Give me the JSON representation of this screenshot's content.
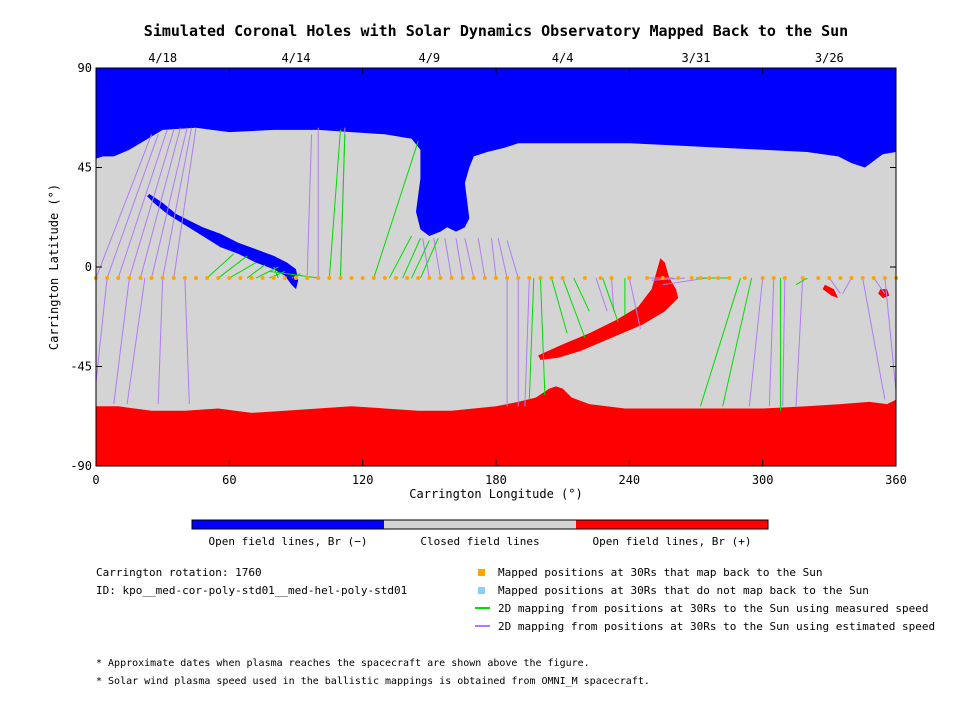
{
  "chart_data": {
    "type": "map",
    "title": "Simulated Coronal Holes with Solar Dynamics Observatory Mapped Back to the Sun",
    "xlabel": "Carrington Longitude (°)",
    "ylabel": "Carrington Latitude (°)",
    "xlim": [
      0,
      360
    ],
    "ylim": [
      -90,
      90
    ],
    "x_ticks": [
      "0",
      "60",
      "120",
      "180",
      "240",
      "300",
      "360"
    ],
    "y_ticks": [
      "90",
      "45",
      "0",
      "-45",
      "-90"
    ],
    "top_dates": [
      {
        "label": "4/18",
        "lon": 30
      },
      {
        "label": "4/14",
        "lon": 90
      },
      {
        "label": "4/9",
        "lon": 150
      },
      {
        "label": "4/4",
        "lon": 210
      },
      {
        "label": "3/31",
        "lon": 270
      },
      {
        "label": "3/26",
        "lon": 330
      }
    ],
    "colorbar": [
      {
        "label": "Open field lines, Br (−)",
        "color": "#0000ff"
      },
      {
        "label": "Closed field lines",
        "color": "#d4d4d4"
      },
      {
        "label": "Open field lines, Br (+)",
        "color": "#ff0000"
      }
    ],
    "mapped_latitude": -5,
    "mapped_points_lon": [
      0,
      5,
      10,
      15,
      20,
      25,
      30,
      35,
      40,
      45,
      50,
      55,
      60,
      65,
      70,
      75,
      80,
      85,
      90,
      95,
      100,
      105,
      110,
      115,
      120,
      125,
      130,
      135,
      140,
      145,
      150,
      155,
      160,
      165,
      170,
      175,
      180,
      185,
      190,
      195,
      200,
      205,
      210,
      220,
      227,
      232,
      240,
      248,
      255,
      262,
      268,
      272,
      276,
      280,
      285,
      292,
      300,
      305,
      310,
      318,
      325,
      330,
      335,
      340,
      345,
      350,
      355,
      360
    ],
    "field_lines_measured": [
      [
        50,
        -5,
        62,
        6
      ],
      [
        55,
        -5,
        68,
        5
      ],
      [
        60,
        -5,
        72,
        2
      ],
      [
        68,
        -5,
        76,
        1
      ],
      [
        72,
        -5,
        82,
        0
      ],
      [
        78,
        -5,
        85,
        -2
      ],
      [
        82,
        -5,
        80,
        0
      ],
      [
        88,
        -5,
        92,
        -3
      ],
      [
        100,
        -5,
        78,
        -2
      ],
      [
        105,
        -5,
        110,
        62
      ],
      [
        110,
        -5,
        112,
        60
      ],
      [
        125,
        -5,
        145,
        57
      ],
      [
        132,
        -5,
        142,
        14
      ],
      [
        138,
        -5,
        146,
        13
      ],
      [
        142,
        -5,
        150,
        12
      ],
      [
        146,
        -5,
        154,
        13
      ],
      [
        197,
        -5,
        195,
        -60
      ],
      [
        200,
        -5,
        202,
        -58
      ],
      [
        205,
        -5,
        212,
        -30
      ],
      [
        210,
        -5,
        220,
        -32
      ],
      [
        215,
        -5,
        222,
        -20
      ],
      [
        228,
        -5,
        235,
        -25
      ],
      [
        238,
        -5,
        238,
        -22
      ],
      [
        270,
        -5,
        285,
        -5
      ],
      [
        290,
        -5,
        272,
        -63
      ],
      [
        295,
        -5,
        282,
        -63
      ],
      [
        308,
        -5,
        308,
        -65
      ],
      [
        320,
        -5,
        315,
        -8
      ]
    ],
    "field_lines_estimated": [
      [
        0,
        -5,
        25,
        60
      ],
      [
        5,
        -5,
        28,
        60
      ],
      [
        10,
        -5,
        32,
        62
      ],
      [
        15,
        -5,
        35,
        62
      ],
      [
        20,
        -5,
        38,
        63
      ],
      [
        25,
        -5,
        41,
        63
      ],
      [
        30,
        -5,
        43,
        63
      ],
      [
        35,
        -5,
        45,
        63
      ],
      [
        5,
        -5,
        0,
        -52
      ],
      [
        15,
        -5,
        8,
        -62
      ],
      [
        22,
        -5,
        14,
        -62
      ],
      [
        30,
        -5,
        28,
        -62
      ],
      [
        40,
        -5,
        42,
        -62
      ],
      [
        95,
        -5,
        97,
        60
      ],
      [
        100,
        -5,
        100,
        63
      ],
      [
        110,
        -5,
        112,
        63
      ],
      [
        150,
        -5,
        147,
        13
      ],
      [
        155,
        -5,
        152,
        13
      ],
      [
        160,
        -5,
        157,
        13
      ],
      [
        165,
        -5,
        162,
        13
      ],
      [
        170,
        -5,
        166,
        13
      ],
      [
        175,
        -5,
        172,
        13
      ],
      [
        180,
        -5,
        178,
        13
      ],
      [
        185,
        -5,
        181,
        13
      ],
      [
        190,
        -5,
        185,
        12
      ],
      [
        185,
        -5,
        185,
        -63
      ],
      [
        190,
        -5,
        190,
        -63
      ],
      [
        195,
        -5,
        193,
        -63
      ],
      [
        225,
        -5,
        230,
        -20
      ],
      [
        232,
        -5,
        233,
        -20
      ],
      [
        240,
        -5,
        245,
        -28
      ],
      [
        260,
        -5,
        248,
        -5
      ],
      [
        265,
        -5,
        250,
        -6
      ],
      [
        275,
        -5,
        255,
        -8
      ],
      [
        300,
        -5,
        294,
        -63
      ],
      [
        305,
        -5,
        303,
        -63
      ],
      [
        310,
        -5,
        309,
        -63
      ],
      [
        318,
        -5,
        315,
        -63
      ],
      [
        330,
        -5,
        335,
        -12
      ],
      [
        340,
        -5,
        336,
        -12
      ],
      [
        350,
        -5,
        355,
        -12
      ],
      [
        355,
        -5,
        360,
        -56
      ],
      [
        345,
        -5,
        355,
        -60
      ]
    ]
  },
  "legend": {
    "mapped": {
      "label": "Mapped positions at 30Rs that map back to the Sun",
      "color": "#ffa500"
    },
    "not_mapped": {
      "label": "Mapped positions at 30Rs that do not map back to the Sun",
      "color": "#87cefa"
    },
    "measured": {
      "label": "2D mapping from positions at 30Rs to the Sun using measured speed",
      "color": "#00dd00"
    },
    "estimated": {
      "label": "2D mapping from positions at 30Rs to the Sun using estimated speed",
      "color": "#b07cf5"
    }
  },
  "info": {
    "rotation": "Carrington rotation: 1760",
    "id": "ID: kpo__med-cor-poly-std01__med-hel-poly-std01"
  },
  "footnotes": [
    "* Approximate dates when plasma reaches the spacecraft are shown above the figure.",
    "* Solar wind plasma speed used in the ballistic mappings is obtained from OMNI_M spacecraft."
  ]
}
